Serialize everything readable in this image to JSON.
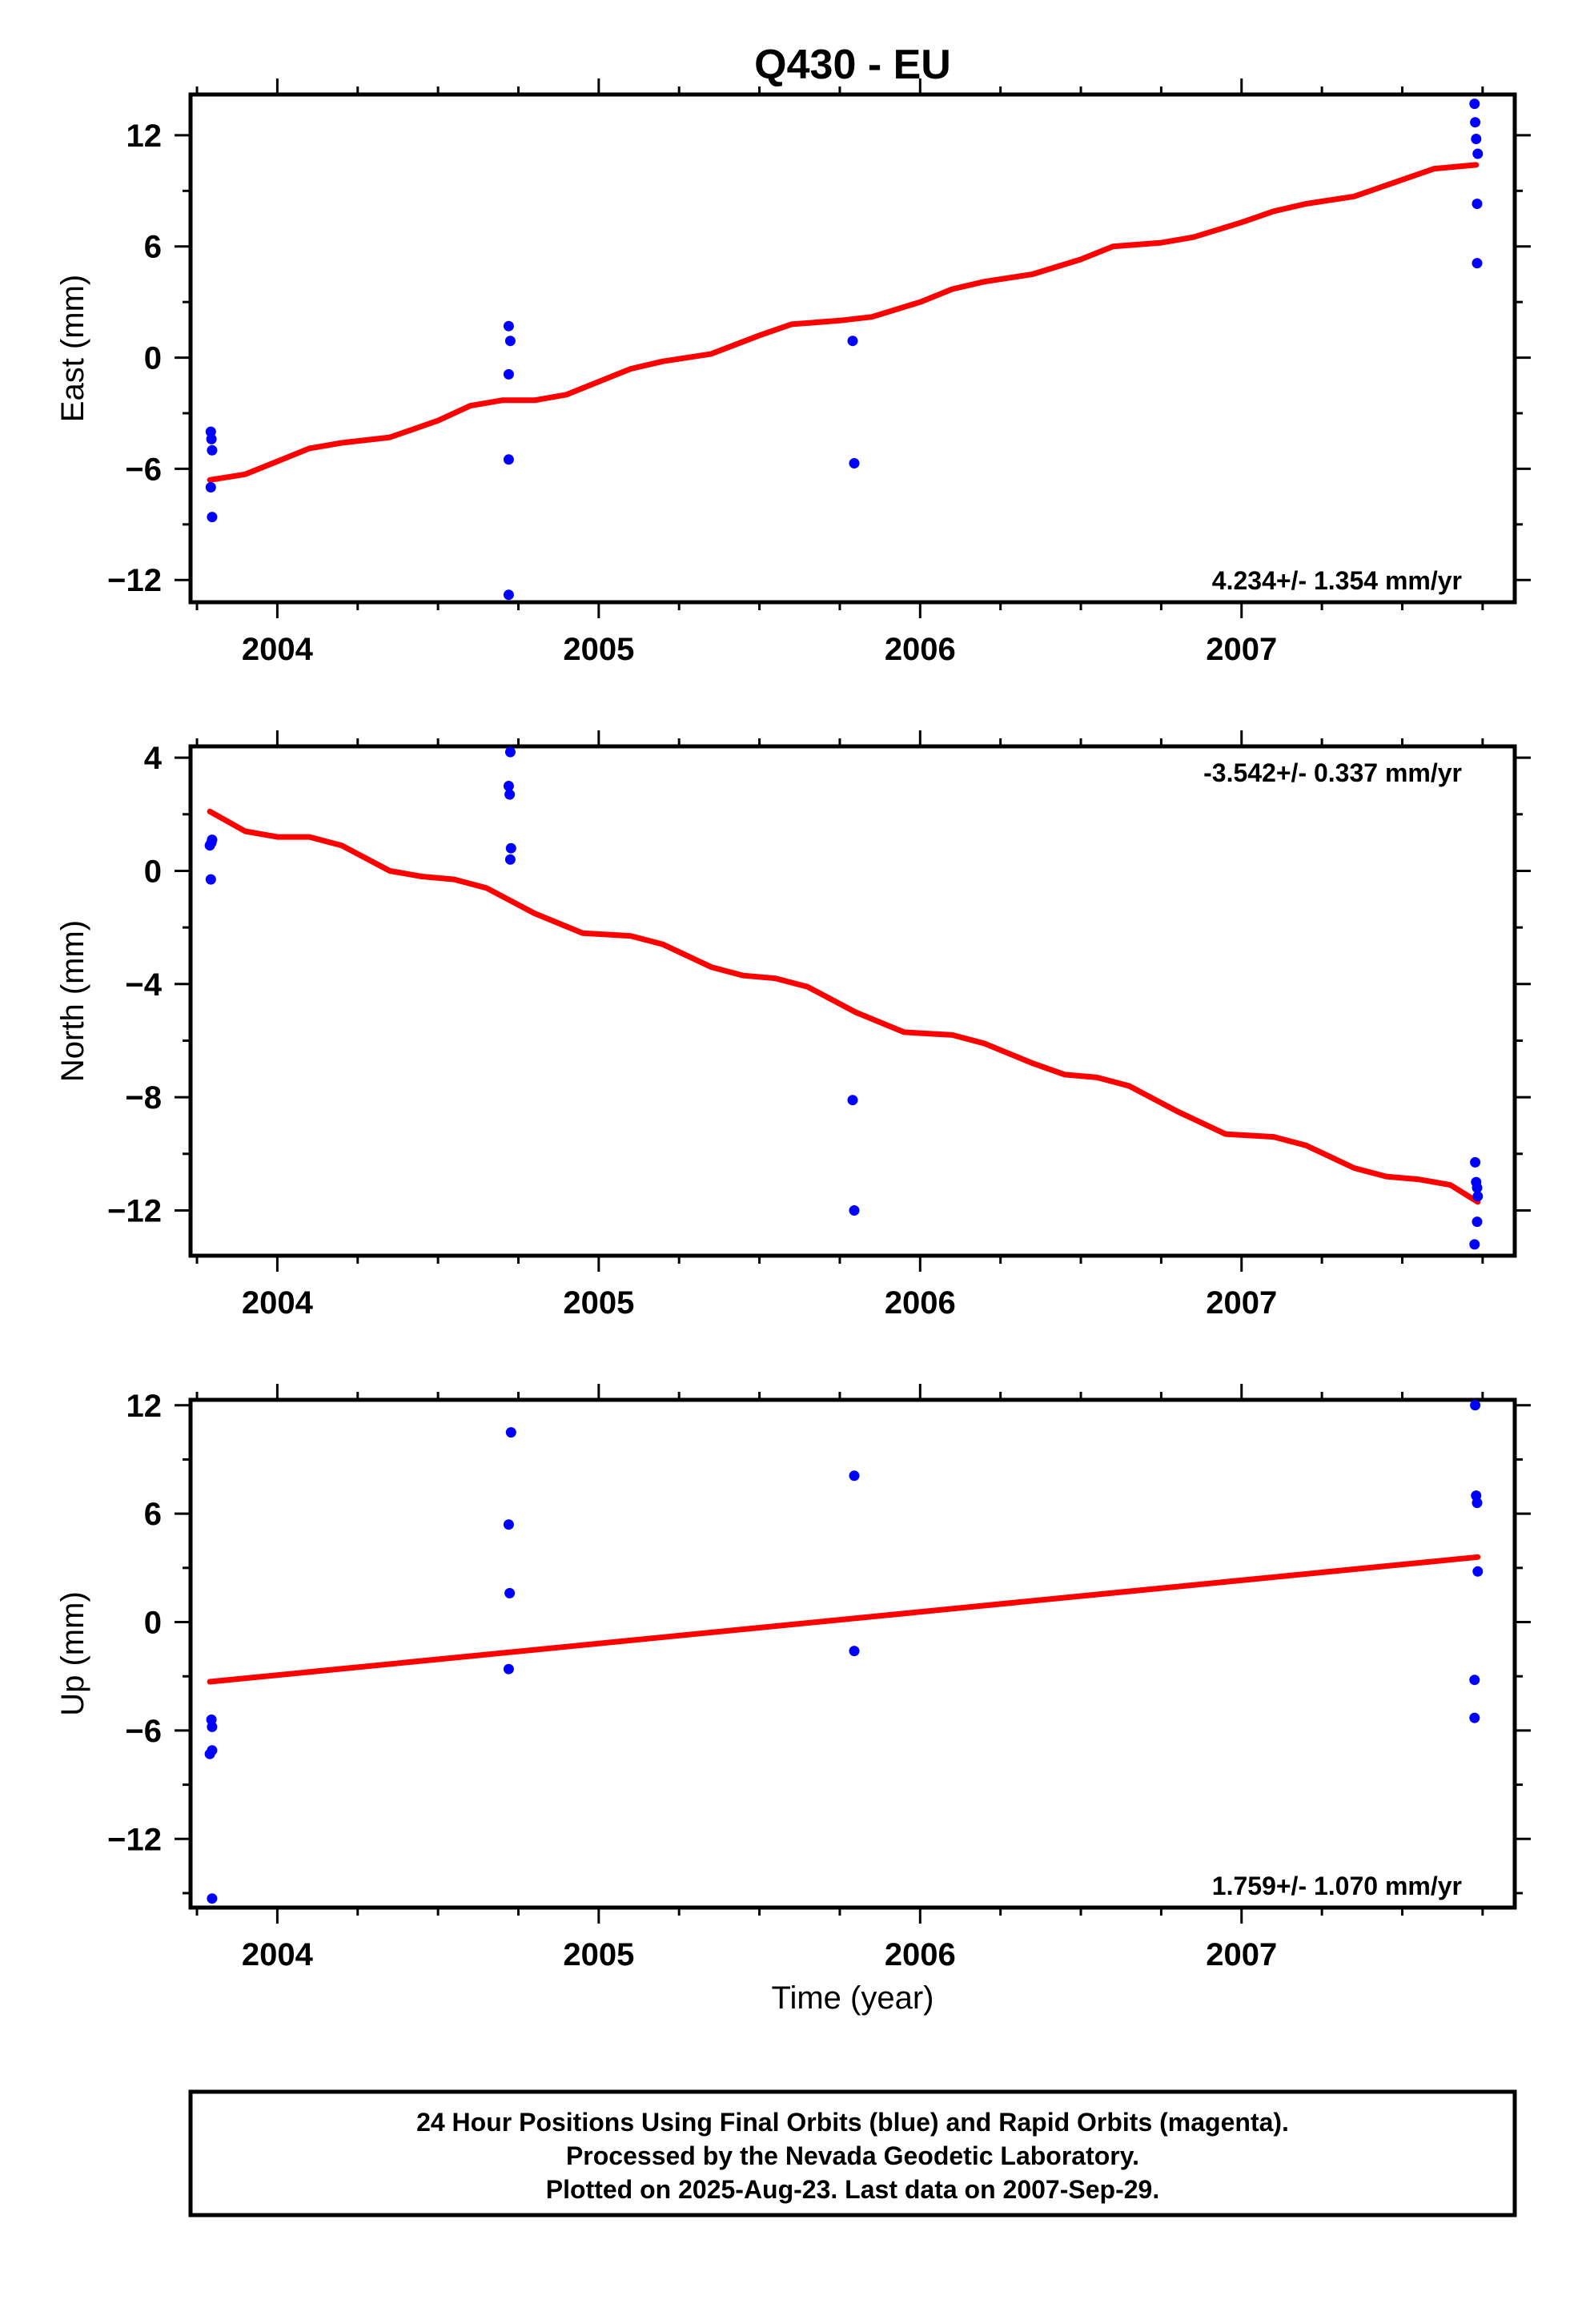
{
  "title": "Q430 - EU",
  "xlabel": "Time (year)",
  "footer": {
    "line1": "24 Hour Positions Using Final Orbits (blue) and Rapid Orbits (magenta).",
    "line2": "Processed by the Nevada Geodetic Laboratory.",
    "line3": "Plotted on 2025-Aug-23. Last data on 2007-Sep-29."
  },
  "colors": {
    "points": "#0000ff",
    "fit": "#ff0000",
    "frame": "#000000"
  },
  "chart_data": [
    {
      "type": "scatter",
      "title": "Q430 - EU",
      "xlabel": "",
      "ylabel": "East (mm)",
      "xlim": [
        2003.73,
        2007.85
      ],
      "ylim": [
        -13.2,
        14.2
      ],
      "xticks": [
        2004,
        2005,
        2006,
        2007
      ],
      "yticks": [
        12,
        6,
        0,
        -6,
        -12
      ],
      "rate_text": "4.234+/- 1.354 mm/yr",
      "rate_position": "bottom-right",
      "grid": false,
      "points": [
        [
          2003.793,
          -4.0
        ],
        [
          2003.795,
          -4.4
        ],
        [
          2003.797,
          -5.0
        ],
        [
          2003.793,
          -7.0
        ],
        [
          2003.797,
          -8.6
        ],
        [
          2004.72,
          1.7
        ],
        [
          2004.725,
          0.9
        ],
        [
          2004.72,
          -0.9
        ],
        [
          2004.72,
          -5.5
        ],
        [
          2004.72,
          -12.8
        ],
        [
          2005.79,
          0.9
        ],
        [
          2005.795,
          -5.7
        ],
        [
          2007.725,
          13.7
        ],
        [
          2007.727,
          12.7
        ],
        [
          2007.73,
          11.8
        ],
        [
          2007.735,
          11.0
        ],
        [
          2007.733,
          8.3
        ],
        [
          2007.733,
          5.1
        ]
      ],
      "fit": [
        [
          2003.79,
          -6.6
        ],
        [
          2003.9,
          -6.3
        ],
        [
          2004.0,
          -5.6
        ],
        [
          2004.1,
          -4.9
        ],
        [
          2004.2,
          -4.6
        ],
        [
          2004.35,
          -4.3
        ],
        [
          2004.5,
          -3.4
        ],
        [
          2004.6,
          -2.6
        ],
        [
          2004.7,
          -2.3
        ],
        [
          2004.8,
          -2.3
        ],
        [
          2004.9,
          -2.0
        ],
        [
          2005.0,
          -1.3
        ],
        [
          2005.1,
          -0.6
        ],
        [
          2005.2,
          -0.2
        ],
        [
          2005.35,
          0.2
        ],
        [
          2005.5,
          1.2
        ],
        [
          2005.6,
          1.8
        ],
        [
          2005.75,
          2.0
        ],
        [
          2005.85,
          2.2
        ],
        [
          2006.0,
          3.0
        ],
        [
          2006.1,
          3.7
        ],
        [
          2006.2,
          4.1
        ],
        [
          2006.35,
          4.5
        ],
        [
          2006.5,
          5.3
        ],
        [
          2006.6,
          6.0
        ],
        [
          2006.75,
          6.2
        ],
        [
          2006.85,
          6.5
        ],
        [
          2007.0,
          7.3
        ],
        [
          2007.1,
          7.9
        ],
        [
          2007.2,
          8.3
        ],
        [
          2007.35,
          8.7
        ],
        [
          2007.5,
          9.6
        ],
        [
          2007.6,
          10.2
        ],
        [
          2007.73,
          10.4
        ]
      ]
    },
    {
      "type": "scatter",
      "xlabel": "",
      "ylabel": "North (mm)",
      "xlim": [
        2003.73,
        2007.85
      ],
      "ylim": [
        -13.6,
        4.4
      ],
      "xticks": [
        2004,
        2005,
        2006,
        2007
      ],
      "yticks": [
        4,
        0,
        -4,
        -8,
        -12
      ],
      "rate_text": "-3.542+/- 0.337 mm/yr",
      "rate_position": "top-right",
      "grid": false,
      "points": [
        [
          2003.79,
          0.9
        ],
        [
          2003.795,
          1.0
        ],
        [
          2003.797,
          1.1
        ],
        [
          2003.793,
          -0.3
        ],
        [
          2004.725,
          4.2
        ],
        [
          2004.72,
          3.0
        ],
        [
          2004.723,
          2.7
        ],
        [
          2004.727,
          0.8
        ],
        [
          2004.725,
          0.4
        ],
        [
          2005.79,
          -8.1
        ],
        [
          2005.795,
          -12.0
        ],
        [
          2007.727,
          -10.3
        ],
        [
          2007.73,
          -11.0
        ],
        [
          2007.733,
          -11.2
        ],
        [
          2007.735,
          -11.5
        ],
        [
          2007.733,
          -12.4
        ],
        [
          2007.725,
          -13.2
        ]
      ],
      "fit": [
        [
          2003.79,
          2.1
        ],
        [
          2003.9,
          1.4
        ],
        [
          2004.0,
          1.2
        ],
        [
          2004.1,
          1.2
        ],
        [
          2004.2,
          0.9
        ],
        [
          2004.35,
          0.0
        ],
        [
          2004.45,
          -0.2
        ],
        [
          2004.55,
          -0.3
        ],
        [
          2004.65,
          -0.6
        ],
        [
          2004.8,
          -1.5
        ],
        [
          2004.95,
          -2.2
        ],
        [
          2005.1,
          -2.3
        ],
        [
          2005.2,
          -2.6
        ],
        [
          2005.35,
          -3.4
        ],
        [
          2005.45,
          -3.7
        ],
        [
          2005.55,
          -3.8
        ],
        [
          2005.65,
          -4.1
        ],
        [
          2005.8,
          -5.0
        ],
        [
          2005.95,
          -5.7
        ],
        [
          2006.1,
          -5.8
        ],
        [
          2006.2,
          -6.1
        ],
        [
          2006.35,
          -6.8
        ],
        [
          2006.45,
          -7.2
        ],
        [
          2006.55,
          -7.3
        ],
        [
          2006.65,
          -7.6
        ],
        [
          2006.8,
          -8.5
        ],
        [
          2006.95,
          -9.3
        ],
        [
          2007.1,
          -9.4
        ],
        [
          2007.2,
          -9.7
        ],
        [
          2007.35,
          -10.5
        ],
        [
          2007.45,
          -10.8
        ],
        [
          2007.55,
          -10.9
        ],
        [
          2007.65,
          -11.1
        ],
        [
          2007.735,
          -11.7
        ]
      ]
    },
    {
      "type": "scatter",
      "xlabel": "Time (year)",
      "ylabel": "Up (mm)",
      "xlim": [
        2003.73,
        2007.85
      ],
      "ylim": [
        -15.8,
        12.3
      ],
      "xticks": [
        2004,
        2005,
        2006,
        2007
      ],
      "yticks": [
        12,
        6,
        0,
        -6,
        -12
      ],
      "rate_text": "1.759+/- 1.070 mm/yr",
      "rate_position": "bottom-right",
      "grid": false,
      "points": [
        [
          2003.795,
          -5.4
        ],
        [
          2003.797,
          -5.8
        ],
        [
          2003.797,
          -7.1
        ],
        [
          2003.79,
          -7.3
        ],
        [
          2003.797,
          -15.3
        ],
        [
          2004.727,
          10.5
        ],
        [
          2004.72,
          5.4
        ],
        [
          2004.723,
          1.6
        ],
        [
          2004.72,
          -2.6
        ],
        [
          2005.795,
          8.1
        ],
        [
          2005.795,
          -1.6
        ],
        [
          2007.727,
          12.0
        ],
        [
          2007.73,
          7.0
        ],
        [
          2007.733,
          6.6
        ],
        [
          2007.735,
          2.8
        ],
        [
          2007.725,
          -3.2
        ],
        [
          2007.725,
          -5.3
        ]
      ],
      "fit": [
        [
          2003.79,
          -3.3
        ],
        [
          2007.735,
          3.6
        ]
      ]
    }
  ]
}
